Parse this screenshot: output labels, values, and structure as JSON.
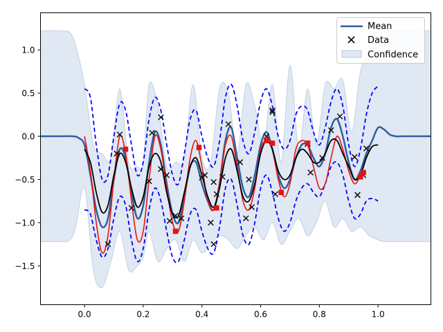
{
  "chart_data": {
    "type": "line",
    "title": "",
    "xlabel": "",
    "ylabel": "",
    "xlim": [
      -0.15,
      1.18
    ],
    "ylim": [
      -1.95,
      1.43
    ],
    "xticks": [
      0.0,
      0.2,
      0.4,
      0.6,
      0.8,
      1.0
    ],
    "xtick_labels": [
      "0.0",
      "0.2",
      "0.4",
      "0.6",
      "0.8",
      "1.0"
    ],
    "yticks": [
      -1.5,
      -1.0,
      -0.5,
      0.0,
      0.5,
      1.0
    ],
    "ytick_labels": [
      "−1.5",
      "−1.0",
      "−0.5",
      "0.0",
      "0.5",
      "1.0"
    ],
    "legend": {
      "position": "top-right",
      "entries": [
        {
          "key": "mean",
          "label": "Mean",
          "marker": "line",
          "color": "#2f5f9c"
        },
        {
          "key": "data",
          "label": "Data",
          "marker": "x",
          "color": "#000000"
        },
        {
          "key": "confidence",
          "label": "Confidence",
          "marker": "patch",
          "color": "#dfe7f3"
        }
      ]
    },
    "colors": {
      "mean": "#2f5f9c",
      "bounds": "#0000ff",
      "true_function": "#e8120f",
      "black_curve": "#000000",
      "confidence_fill": "#d5e0ef",
      "confidence_edge": "#b7c8e0",
      "data": "#111111",
      "squares": "#e8120f"
    },
    "series": [
      {
        "name": "Mean",
        "x": [
          -0.15,
          -0.08,
          -0.04,
          -0.02,
          0.0,
          0.02,
          0.04,
          0.06,
          0.08,
          0.1,
          0.12,
          0.14,
          0.16,
          0.18,
          0.2,
          0.22,
          0.24,
          0.26,
          0.28,
          0.3,
          0.32,
          0.34,
          0.36,
          0.38,
          0.4,
          0.42,
          0.44,
          0.46,
          0.48,
          0.5,
          0.52,
          0.54,
          0.56,
          0.58,
          0.6,
          0.62,
          0.64,
          0.66,
          0.68,
          0.7,
          0.72,
          0.74,
          0.76,
          0.78,
          0.8,
          0.82,
          0.84,
          0.86,
          0.88,
          0.9,
          0.92,
          0.94,
          0.96,
          0.98,
          1.0,
          1.02,
          1.04,
          1.06,
          1.08,
          1.1,
          1.14,
          1.18
        ],
        "y": [
          0.0,
          0.0,
          0.0,
          -0.02,
          -0.1,
          -0.45,
          -0.85,
          -1.05,
          -0.95,
          -0.5,
          -0.15,
          -0.25,
          -0.65,
          -0.95,
          -0.8,
          -0.3,
          0.05,
          -0.1,
          -0.55,
          -0.9,
          -1.0,
          -0.7,
          -0.35,
          -0.3,
          -0.55,
          -0.75,
          -0.85,
          -0.55,
          -0.05,
          0.1,
          -0.25,
          -0.6,
          -0.7,
          -0.45,
          -0.1,
          0.05,
          -0.15,
          -0.45,
          -0.6,
          -0.5,
          -0.25,
          -0.1,
          -0.1,
          -0.25,
          -0.35,
          -0.2,
          0.1,
          0.2,
          0.0,
          -0.3,
          -0.5,
          -0.4,
          -0.2,
          -0.05,
          0.1,
          0.08,
          0.02,
          0.0,
          0.0,
          0.0,
          0.0,
          0.0
        ]
      },
      {
        "name": "Upper bound",
        "x": [
          0.0,
          0.02,
          0.04,
          0.06,
          0.08,
          0.1,
          0.12,
          0.14,
          0.16,
          0.18,
          0.2,
          0.22,
          0.24,
          0.26,
          0.28,
          0.3,
          0.32,
          0.34,
          0.36,
          0.38,
          0.4,
          0.42,
          0.44,
          0.46,
          0.48,
          0.5,
          0.52,
          0.54,
          0.56,
          0.58,
          0.6,
          0.62,
          0.64,
          0.66,
          0.68,
          0.7,
          0.72,
          0.74,
          0.76,
          0.78,
          0.8,
          0.82,
          0.84,
          0.86,
          0.88,
          0.9,
          0.92,
          0.94,
          0.96,
          0.98,
          1.0
        ],
        "y": [
          0.55,
          0.45,
          -0.1,
          -0.5,
          -0.45,
          0.0,
          0.38,
          0.3,
          -0.1,
          -0.45,
          -0.3,
          0.2,
          0.45,
          0.3,
          -0.1,
          -0.45,
          -0.55,
          -0.2,
          0.2,
          0.3,
          0.0,
          -0.25,
          -0.35,
          -0.05,
          0.45,
          0.6,
          0.35,
          -0.05,
          -0.2,
          0.05,
          0.4,
          0.55,
          0.35,
          0.0,
          -0.15,
          -0.05,
          0.25,
          0.35,
          0.3,
          0.05,
          -0.1,
          0.1,
          0.4,
          0.55,
          0.35,
          -0.1,
          -0.35,
          -0.15,
          0.25,
          0.5,
          0.58
        ]
      },
      {
        "name": "Lower bound",
        "x": [
          0.0,
          0.02,
          0.04,
          0.06,
          0.08,
          0.1,
          0.12,
          0.14,
          0.16,
          0.18,
          0.2,
          0.22,
          0.24,
          0.26,
          0.28,
          0.3,
          0.32,
          0.34,
          0.36,
          0.38,
          0.4,
          0.42,
          0.44,
          0.46,
          0.48,
          0.5,
          0.52,
          0.54,
          0.56,
          0.58,
          0.6,
          0.62,
          0.64,
          0.66,
          0.68,
          0.7,
          0.72,
          0.74,
          0.76,
          0.78,
          0.8,
          0.82,
          0.84,
          0.86,
          0.88,
          0.9,
          0.92,
          0.94,
          0.96,
          0.98,
          1.0
        ],
        "y": [
          -0.85,
          -0.9,
          -1.2,
          -1.4,
          -1.3,
          -0.95,
          -0.7,
          -0.8,
          -1.2,
          -1.45,
          -1.3,
          -0.85,
          -0.6,
          -0.75,
          -1.1,
          -1.4,
          -1.45,
          -1.2,
          -0.9,
          -0.85,
          -1.1,
          -1.3,
          -1.35,
          -1.05,
          -0.6,
          -0.5,
          -0.8,
          -1.15,
          -1.25,
          -1.0,
          -0.6,
          -0.45,
          -0.65,
          -0.95,
          -1.1,
          -1.0,
          -0.75,
          -0.6,
          -0.55,
          -0.65,
          -0.7,
          -0.55,
          -0.35,
          -0.3,
          -0.45,
          -0.75,
          -0.95,
          -0.9,
          -0.75,
          -0.72,
          -0.75
        ]
      },
      {
        "name": "True function",
        "x": [
          0.0,
          0.02,
          0.04,
          0.06,
          0.08,
          0.1,
          0.12,
          0.14,
          0.16,
          0.18,
          0.2,
          0.22,
          0.24,
          0.26,
          0.28,
          0.3,
          0.32,
          0.34,
          0.36,
          0.38,
          0.4,
          0.42,
          0.44,
          0.46,
          0.48,
          0.5,
          0.52,
          0.54,
          0.56,
          0.58,
          0.6,
          0.62,
          0.64,
          0.66,
          0.68,
          0.7,
          0.72,
          0.74,
          0.76,
          0.78,
          0.8,
          0.82,
          0.84,
          0.86,
          0.88,
          0.9,
          0.92,
          0.94,
          0.96,
          0.98,
          1.0
        ],
        "y": [
          0.0,
          -0.4,
          -1.0,
          -1.35,
          -1.15,
          -0.5,
          0.0,
          -0.2,
          -0.75,
          -1.2,
          -1.1,
          -0.5,
          0.0,
          -0.15,
          -0.6,
          -1.0,
          -1.1,
          -0.75,
          -0.25,
          -0.05,
          -0.35,
          -0.75,
          -0.85,
          -0.55,
          -0.1,
          0.0,
          -0.35,
          -0.75,
          -0.85,
          -0.6,
          -0.15,
          -0.05,
          -0.15,
          -0.5,
          -0.7,
          -0.55,
          -0.15,
          -0.05,
          -0.1,
          -0.35,
          -0.6,
          -0.55,
          -0.25,
          0.0,
          -0.15,
          -0.4,
          -0.55,
          -0.45,
          -0.25,
          -0.12,
          -0.1
        ]
      },
      {
        "name": "Black curve",
        "x": [
          0.0,
          0.02,
          0.04,
          0.06,
          0.08,
          0.1,
          0.12,
          0.14,
          0.16,
          0.18,
          0.2,
          0.22,
          0.24,
          0.26,
          0.28,
          0.3,
          0.32,
          0.34,
          0.36,
          0.38,
          0.4,
          0.42,
          0.44,
          0.46,
          0.48,
          0.5,
          0.52,
          0.54,
          0.56,
          0.58,
          0.6,
          0.62,
          0.64,
          0.66,
          0.68,
          0.7,
          0.72,
          0.74,
          0.76,
          0.78,
          0.8,
          0.82,
          0.84,
          0.86,
          0.88,
          0.9,
          0.92,
          0.94,
          0.96,
          0.98,
          1.0
        ],
        "y": [
          -0.15,
          -0.3,
          -0.65,
          -0.88,
          -0.8,
          -0.45,
          -0.2,
          -0.3,
          -0.6,
          -0.82,
          -0.7,
          -0.35,
          -0.2,
          -0.3,
          -0.65,
          -0.9,
          -0.92,
          -0.65,
          -0.35,
          -0.25,
          -0.45,
          -0.7,
          -0.82,
          -0.6,
          -0.25,
          -0.15,
          -0.4,
          -0.7,
          -0.75,
          -0.55,
          -0.2,
          -0.05,
          -0.15,
          -0.4,
          -0.5,
          -0.45,
          -0.25,
          -0.15,
          -0.2,
          -0.3,
          -0.3,
          -0.2,
          -0.05,
          -0.05,
          -0.2,
          -0.35,
          -0.5,
          -0.45,
          -0.25,
          -0.12,
          -0.1
        ]
      }
    ],
    "confidence": {
      "name": "Confidence",
      "x": [
        -0.15,
        -0.08,
        -0.05,
        -0.03,
        0.0,
        0.03,
        0.06,
        0.09,
        0.12,
        0.15,
        0.18,
        0.2,
        0.22,
        0.25,
        0.28,
        0.31,
        0.34,
        0.37,
        0.4,
        0.43,
        0.46,
        0.49,
        0.52,
        0.55,
        0.58,
        0.61,
        0.64,
        0.67,
        0.7,
        0.73,
        0.76,
        0.79,
        0.82,
        0.85,
        0.88,
        0.91,
        0.94,
        0.97,
        1.0,
        1.02,
        1.04,
        1.06,
        1.08,
        1.18
      ],
      "upper": [
        1.22,
        1.22,
        1.2,
        1.05,
        0.6,
        -0.1,
        -0.2,
        -0.25,
        0.55,
        -0.3,
        -0.35,
        -0.3,
        0.6,
        0.35,
        -0.35,
        -0.3,
        -0.25,
        0.6,
        -0.25,
        -0.3,
        0.55,
        0.5,
        -0.2,
        0.6,
        0.35,
        -0.1,
        0.6,
        -0.3,
        0.82,
        -0.15,
        0.55,
        -0.1,
        0.6,
        0.55,
        0.65,
        0.05,
        0.75,
        0.95,
        1.15,
        1.2,
        1.22,
        1.22,
        1.22,
        1.22
      ],
      "lower": [
        -1.22,
        -1.22,
        -1.2,
        -1.05,
        -0.6,
        -1.55,
        -1.75,
        -1.45,
        -1.1,
        -1.55,
        -1.5,
        -1.4,
        -1.1,
        -1.45,
        -1.3,
        -1.2,
        -1.45,
        -1.2,
        -1.35,
        -1.25,
        -1.15,
        -1.2,
        -1.3,
        -1.15,
        -1.05,
        -1.2,
        -1.0,
        -1.25,
        -1.1,
        -0.95,
        -1.15,
        -1.0,
        -0.75,
        -1.05,
        -0.95,
        -1.1,
        -1.05,
        -1.15,
        -1.2,
        -1.22,
        -1.22,
        -1.22,
        -1.22,
        -1.22
      ]
    },
    "data_points": {
      "name": "Data",
      "x": [
        0.08,
        0.11,
        0.12,
        0.16,
        0.22,
        0.23,
        0.26,
        0.26,
        0.28,
        0.29,
        0.31,
        0.33,
        0.4,
        0.41,
        0.43,
        0.44,
        0.44,
        0.45,
        0.47,
        0.49,
        0.53,
        0.55,
        0.56,
        0.57,
        0.62,
        0.64,
        0.64,
        0.65,
        0.76,
        0.77,
        0.81,
        0.84,
        0.87,
        0.92,
        0.93,
        0.93,
        0.95,
        0.96
      ],
      "y": [
        -1.25,
        -0.2,
        0.02,
        -0.83,
        -0.52,
        0.04,
        0.22,
        -0.38,
        -0.45,
        -0.98,
        -0.92,
        -0.95,
        -0.48,
        -0.45,
        -1.0,
        -1.25,
        -0.53,
        -0.67,
        -0.47,
        0.14,
        -0.3,
        -0.95,
        -0.5,
        -0.82,
        0.0,
        0.3,
        0.28,
        -0.67,
        -0.09,
        -0.42,
        -0.25,
        0.07,
        0.23,
        -0.24,
        -0.68,
        -0.68,
        -0.45,
        -0.14
      ]
    },
    "square_points": {
      "x": [
        0.14,
        0.31,
        0.39,
        0.45,
        0.62,
        0.64,
        0.67,
        0.76,
        0.94,
        0.95
      ],
      "y": [
        -0.15,
        -1.1,
        -0.13,
        -0.83,
        -0.05,
        -0.08,
        -0.65,
        -0.08,
        -0.47,
        -0.42
      ]
    }
  }
}
